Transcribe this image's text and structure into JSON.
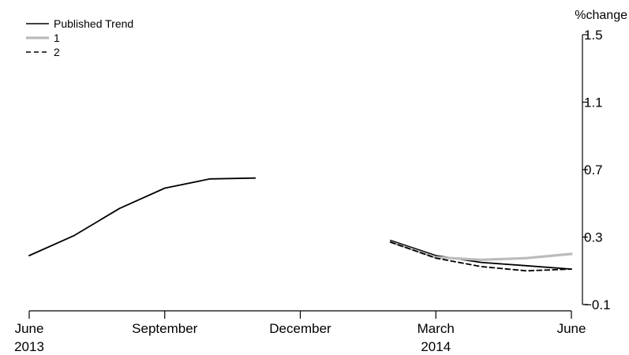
{
  "chart_data": {
    "type": "line",
    "y_unit_label": "%change",
    "ylim": [
      -0.1,
      1.5
    ],
    "y_ticks": [
      -0.1,
      0.3,
      0.7,
      1.1,
      1.5
    ],
    "y_tick_labels": [
      "−0.1",
      "0.3",
      "0.7",
      "1.1",
      "1.5"
    ],
    "y_axis_side": "right",
    "grid": false,
    "legend_position": "top-left",
    "x_periods": [
      "2013-06",
      "2013-07",
      "2013-08",
      "2013-09",
      "2013-10",
      "2013-11",
      "2013-12",
      "2014-01",
      "2014-02",
      "2014-03",
      "2014-04",
      "2014-05",
      "2014-06"
    ],
    "x_tick_marks": [
      "2013-06",
      "2013-09",
      "2013-12",
      "2014-03",
      "2014-06"
    ],
    "x_tick_labels": [
      {
        "period": "2013-06",
        "line1": "June",
        "line2": "2013"
      },
      {
        "period": "2013-09",
        "line1": "September",
        "line2": ""
      },
      {
        "period": "2013-12",
        "line1": "December",
        "line2": ""
      },
      {
        "period": "2014-03",
        "line1": "March",
        "line2": "2014"
      },
      {
        "period": "2014-06",
        "line1": "June",
        "line2": ""
      }
    ],
    "series": [
      {
        "name": "Published Trend",
        "color": "#000000",
        "style": "solid",
        "segments": [
          {
            "x": [
              "2013-06",
              "2013-07",
              "2013-08",
              "2013-09",
              "2013-10",
              "2013-11"
            ],
            "y": [
              0.19,
              0.31,
              0.47,
              0.59,
              0.645,
              0.65
            ]
          },
          {
            "x": [
              "2014-02",
              "2014-03",
              "2014-04",
              "2014-05",
              "2014-06"
            ],
            "y": [
              0.28,
              0.19,
              0.15,
              0.13,
              0.11
            ]
          }
        ]
      },
      {
        "name": "1",
        "color": "#bbbbbb",
        "style": "solid",
        "segments": [
          {
            "x": [
              "2014-02",
              "2014-03",
              "2014-04",
              "2014-05",
              "2014-06"
            ],
            "y": [
              0.27,
              0.18,
              0.165,
              0.175,
              0.2
            ]
          }
        ]
      },
      {
        "name": "2",
        "color": "#000000",
        "style": "dashed",
        "segments": [
          {
            "x": [
              "2014-02",
              "2014-03",
              "2014-04",
              "2014-05",
              "2014-06"
            ],
            "y": [
              0.27,
              0.175,
              0.125,
              0.1,
              0.11
            ]
          }
        ]
      }
    ]
  }
}
